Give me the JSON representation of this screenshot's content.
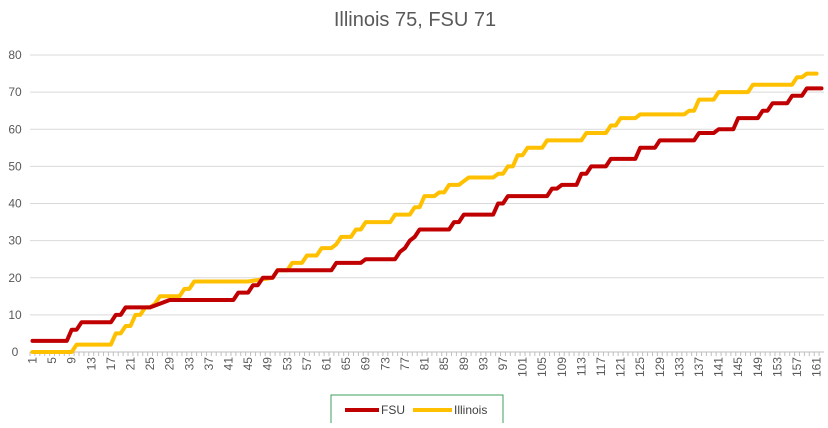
{
  "chart_data": {
    "type": "line",
    "title": "Illinois 75, FSU 71",
    "xlabel": "",
    "ylabel": "",
    "ylim": [
      0,
      80
    ],
    "yticks": [
      0,
      10,
      20,
      30,
      40,
      50,
      60,
      70,
      80
    ],
    "xlim": [
      1,
      162
    ],
    "xticks": [
      1,
      5,
      9,
      13,
      17,
      21,
      25,
      29,
      33,
      37,
      41,
      45,
      49,
      53,
      57,
      61,
      65,
      69,
      73,
      77,
      81,
      85,
      89,
      93,
      97,
      101,
      105,
      109,
      113,
      117,
      121,
      125,
      129,
      133,
      137,
      141,
      145,
      149,
      153,
      157,
      161
    ],
    "grid": true,
    "legend_position": "bottom",
    "series": [
      {
        "name": "FSU",
        "color": "#c00000",
        "points": [
          [
            1,
            3
          ],
          [
            8,
            3
          ],
          [
            9,
            6
          ],
          [
            10,
            6
          ],
          [
            11,
            8
          ],
          [
            17,
            8
          ],
          [
            18,
            10
          ],
          [
            19,
            10
          ],
          [
            20,
            12
          ],
          [
            24,
            12
          ],
          [
            25,
            12
          ],
          [
            29,
            14
          ],
          [
            42,
            14
          ],
          [
            43,
            16
          ],
          [
            45,
            16
          ],
          [
            46,
            18
          ],
          [
            47,
            18
          ],
          [
            48,
            20
          ],
          [
            50,
            20
          ],
          [
            51,
            22
          ],
          [
            62,
            22
          ],
          [
            63,
            24
          ],
          [
            68,
            24
          ],
          [
            69,
            25
          ],
          [
            75,
            25
          ],
          [
            76,
            27
          ],
          [
            77,
            28
          ],
          [
            78,
            30
          ],
          [
            79,
            31
          ],
          [
            80,
            33
          ],
          [
            86,
            33
          ],
          [
            87,
            35
          ],
          [
            88,
            35
          ],
          [
            89,
            37
          ],
          [
            95,
            37
          ],
          [
            96,
            40
          ],
          [
            97,
            40
          ],
          [
            98,
            42
          ],
          [
            106,
            42
          ],
          [
            107,
            44
          ],
          [
            108,
            44
          ],
          [
            109,
            45
          ],
          [
            112,
            45
          ],
          [
            113,
            48
          ],
          [
            114,
            48
          ],
          [
            115,
            50
          ],
          [
            118,
            50
          ],
          [
            119,
            52
          ],
          [
            124,
            52
          ],
          [
            125,
            55
          ],
          [
            128,
            55
          ],
          [
            129,
            57
          ],
          [
            136,
            57
          ],
          [
            137,
            59
          ],
          [
            140,
            59
          ],
          [
            141,
            60
          ],
          [
            144,
            60
          ],
          [
            145,
            63
          ],
          [
            149,
            63
          ],
          [
            150,
            65
          ],
          [
            151,
            65
          ],
          [
            152,
            67
          ],
          [
            155,
            67
          ],
          [
            156,
            69
          ],
          [
            158,
            69
          ],
          [
            159,
            71
          ],
          [
            162,
            71
          ]
        ]
      },
      {
        "name": "Illinois",
        "color": "#ffc000",
        "points": [
          [
            1,
            0
          ],
          [
            9,
            0
          ],
          [
            10,
            2
          ],
          [
            17,
            2
          ],
          [
            18,
            5
          ],
          [
            19,
            5
          ],
          [
            20,
            7
          ],
          [
            21,
            7
          ],
          [
            22,
            10
          ],
          [
            23,
            10
          ],
          [
            24,
            12
          ],
          [
            25,
            12
          ],
          [
            26,
            13
          ],
          [
            27,
            15
          ],
          [
            30,
            15
          ],
          [
            31,
            15
          ],
          [
            32,
            17
          ],
          [
            33,
            17
          ],
          [
            34,
            19
          ],
          [
            44,
            19
          ],
          [
            45,
            19
          ],
          [
            50,
            20
          ],
          [
            51,
            22
          ],
          [
            53,
            22
          ],
          [
            54,
            24
          ],
          [
            56,
            24
          ],
          [
            57,
            26
          ],
          [
            59,
            26
          ],
          [
            60,
            28
          ],
          [
            61,
            28
          ],
          [
            62,
            28
          ],
          [
            63,
            29
          ],
          [
            64,
            31
          ],
          [
            66,
            31
          ],
          [
            67,
            33
          ],
          [
            68,
            33
          ],
          [
            69,
            35
          ],
          [
            74,
            35
          ],
          [
            75,
            37
          ],
          [
            77,
            37
          ],
          [
            78,
            37
          ],
          [
            79,
            39
          ],
          [
            80,
            39
          ],
          [
            81,
            42
          ],
          [
            83,
            42
          ],
          [
            84,
            43
          ],
          [
            85,
            43
          ],
          [
            86,
            45
          ],
          [
            88,
            45
          ],
          [
            89,
            46
          ],
          [
            90,
            47
          ],
          [
            95,
            47
          ],
          [
            96,
            48
          ],
          [
            97,
            48
          ],
          [
            98,
            50
          ],
          [
            99,
            50
          ],
          [
            100,
            53
          ],
          [
            101,
            53
          ],
          [
            102,
            55
          ],
          [
            105,
            55
          ],
          [
            106,
            57
          ],
          [
            113,
            57
          ],
          [
            114,
            59
          ],
          [
            118,
            59
          ],
          [
            119,
            61
          ],
          [
            120,
            61
          ],
          [
            121,
            63
          ],
          [
            124,
            63
          ],
          [
            125,
            64
          ],
          [
            134,
            64
          ],
          [
            135,
            65
          ],
          [
            136,
            65
          ],
          [
            137,
            68
          ],
          [
            140,
            68
          ],
          [
            141,
            70
          ],
          [
            147,
            70
          ],
          [
            148,
            72
          ],
          [
            155,
            72
          ],
          [
            156,
            72
          ],
          [
            157,
            74
          ],
          [
            158,
            74
          ],
          [
            159,
            75
          ],
          [
            161,
            75
          ]
        ]
      }
    ]
  }
}
